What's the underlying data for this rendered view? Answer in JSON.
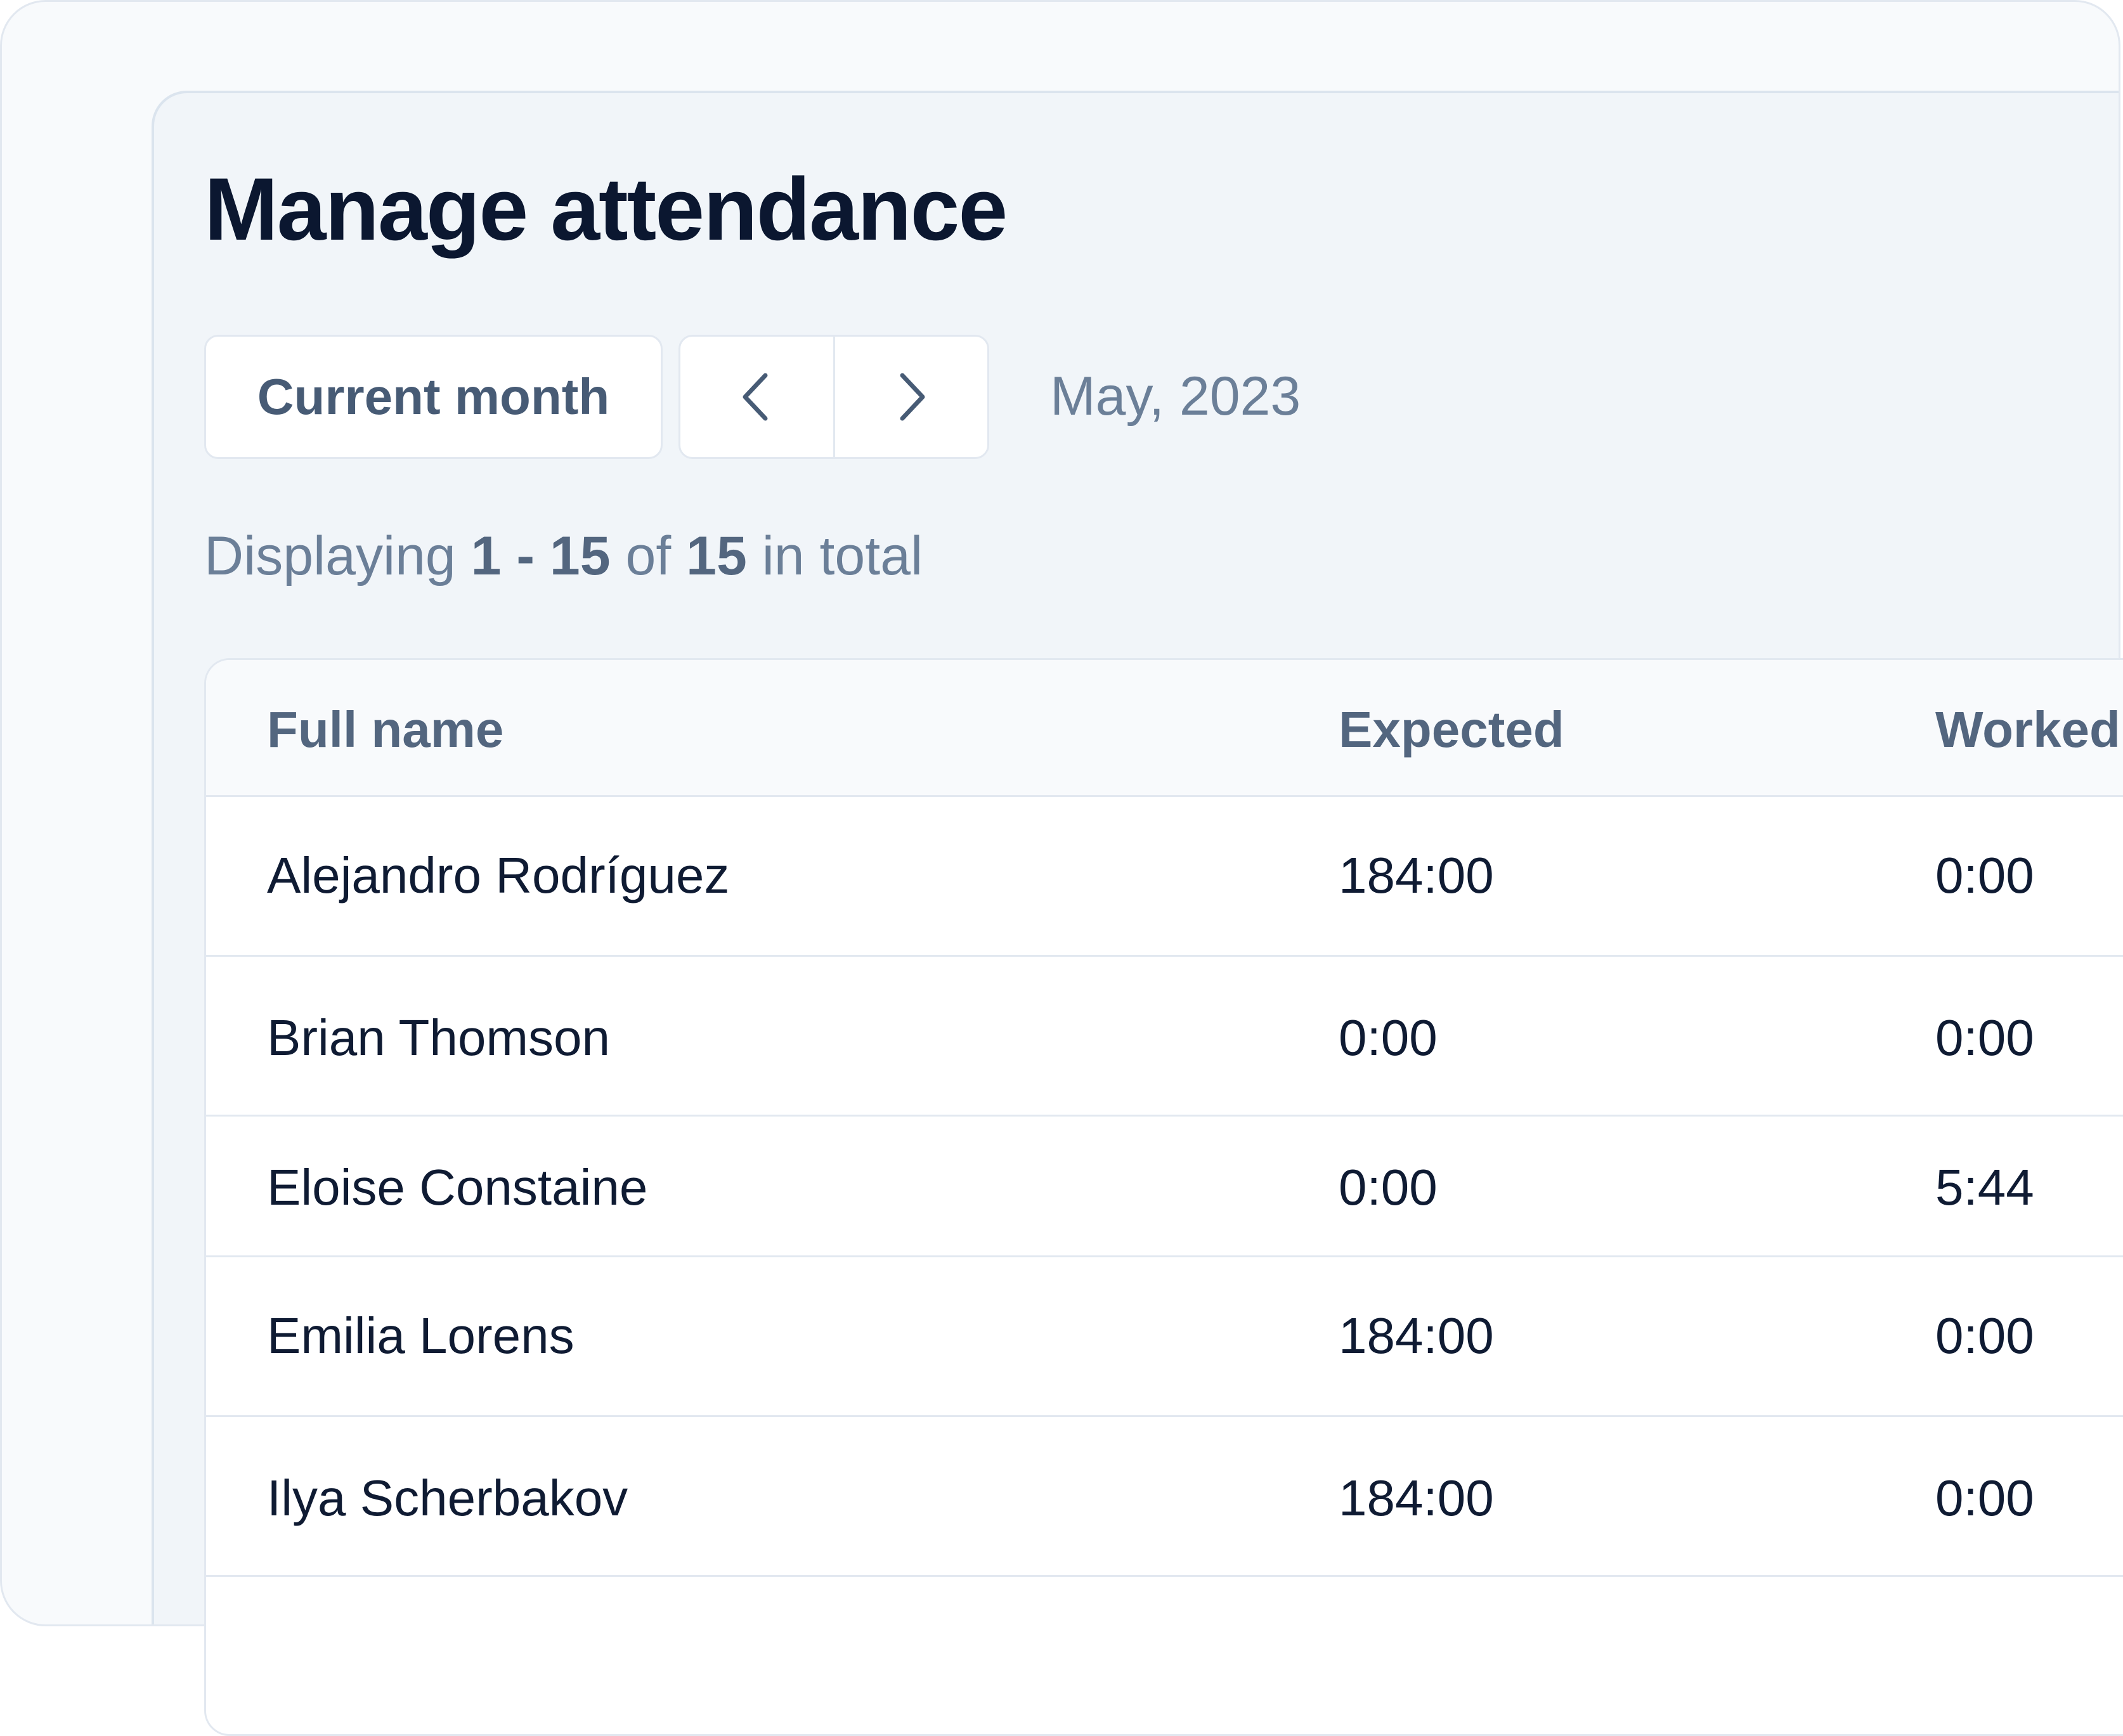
{
  "page": {
    "title": "Manage attendance"
  },
  "toolbar": {
    "current_month_label": "Current month",
    "prev_icon": "chevron-left-icon",
    "next_icon": "chevron-right-icon",
    "period": "May, 2023"
  },
  "pagination": {
    "prefix": "Displaying",
    "range": "1 - 15",
    "of": "of",
    "total": "15",
    "suffix": "in total"
  },
  "table": {
    "headers": {
      "full_name": "Full name",
      "expected": "Expected",
      "worked": "Worked"
    },
    "rows": [
      {
        "full_name": "Alejandro Rodríguez",
        "expected": "184:00",
        "worked": "0:00"
      },
      {
        "full_name": "Brian Thomson",
        "expected": "0:00",
        "worked": "0:00"
      },
      {
        "full_name": "Eloise Constaine",
        "expected": "0:00",
        "worked": "5:44"
      },
      {
        "full_name": "Emilia Lorens",
        "expected": "184:00",
        "worked": "0:00"
      },
      {
        "full_name": "Ilya Scherbakov",
        "expected": "184:00",
        "worked": "0:00"
      }
    ]
  },
  "colors": {
    "background": "#f8fafc",
    "panel": "#f1f5f9",
    "title": "#0b1730",
    "muted_text": "#6b7f98",
    "header_text": "#53667f",
    "border": "#e2e8f0"
  }
}
